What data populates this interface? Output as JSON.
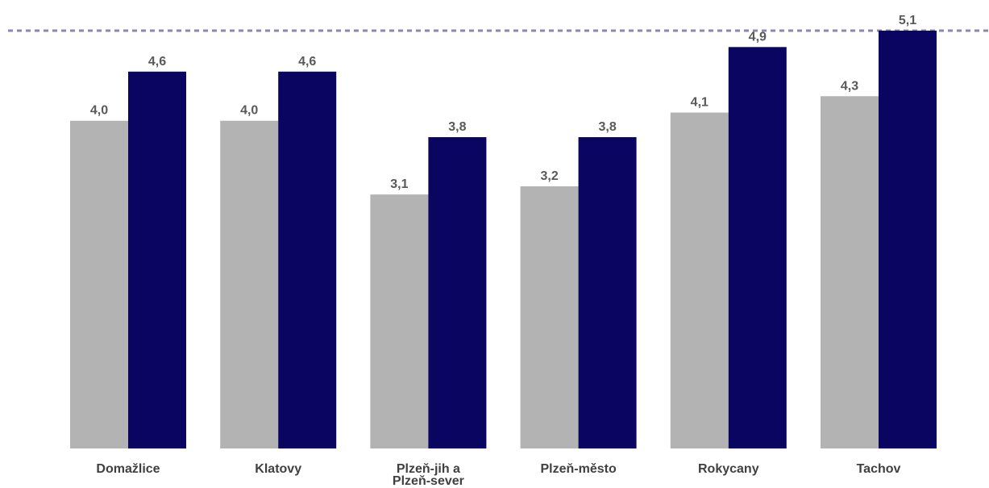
{
  "chart_data": {
    "type": "bar",
    "title": "",
    "xlabel": "",
    "ylabel": "",
    "categories": [
      [
        "Domažlice"
      ],
      [
        "Klatovy"
      ],
      [
        "Plzeň-jih a",
        "Plzeň-sever"
      ],
      [
        "Plzeň-město"
      ],
      [
        "Rokycany"
      ],
      [
        "Tachov"
      ]
    ],
    "series": [
      {
        "color": "#b3b3b3",
        "values": [
          4.0,
          4.0,
          3.1,
          3.2,
          4.1,
          4.3
        ],
        "labels": [
          "4,0",
          "4,0",
          "3,1",
          "3,2",
          "4,1",
          "4,3"
        ]
      },
      {
        "color": "#0a0560",
        "values": [
          4.6,
          4.6,
          3.8,
          3.8,
          4.9,
          5.1
        ],
        "labels": [
          "4,6",
          "4,6",
          "3,8",
          "3,8",
          "4,9",
          "5,1"
        ]
      }
    ],
    "reference_line": {
      "value": 5.1,
      "color": "#8a86b5",
      "style": "dashed"
    },
    "ylim": [
      0,
      5.1
    ],
    "grid": false,
    "legend": "none"
  }
}
